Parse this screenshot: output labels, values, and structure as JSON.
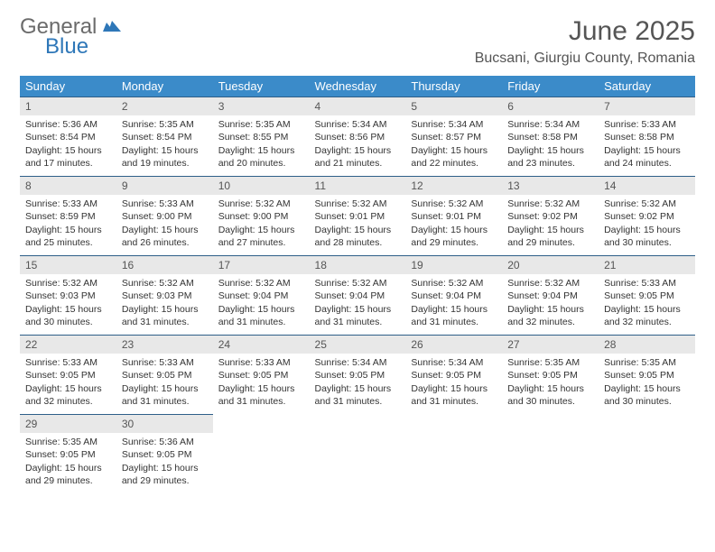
{
  "brand": {
    "word1": "General",
    "word2": "Blue",
    "icon_color": "#2e77b8"
  },
  "title": "June 2025",
  "location": "Bucsani, Giurgiu County, Romania",
  "colors": {
    "header_bg": "#3b8bc9",
    "header_text": "#ffffff",
    "daynum_bg": "#e8e8e8",
    "border": "#2e5f89",
    "text": "#333333"
  },
  "day_headers": [
    "Sunday",
    "Monday",
    "Tuesday",
    "Wednesday",
    "Thursday",
    "Friday",
    "Saturday"
  ],
  "days": [
    {
      "n": "1",
      "sr": "5:36 AM",
      "ss": "8:54 PM",
      "dl": "15 hours and 17 minutes."
    },
    {
      "n": "2",
      "sr": "5:35 AM",
      "ss": "8:54 PM",
      "dl": "15 hours and 19 minutes."
    },
    {
      "n": "3",
      "sr": "5:35 AM",
      "ss": "8:55 PM",
      "dl": "15 hours and 20 minutes."
    },
    {
      "n": "4",
      "sr": "5:34 AM",
      "ss": "8:56 PM",
      "dl": "15 hours and 21 minutes."
    },
    {
      "n": "5",
      "sr": "5:34 AM",
      "ss": "8:57 PM",
      "dl": "15 hours and 22 minutes."
    },
    {
      "n": "6",
      "sr": "5:34 AM",
      "ss": "8:58 PM",
      "dl": "15 hours and 23 minutes."
    },
    {
      "n": "7",
      "sr": "5:33 AM",
      "ss": "8:58 PM",
      "dl": "15 hours and 24 minutes."
    },
    {
      "n": "8",
      "sr": "5:33 AM",
      "ss": "8:59 PM",
      "dl": "15 hours and 25 minutes."
    },
    {
      "n": "9",
      "sr": "5:33 AM",
      "ss": "9:00 PM",
      "dl": "15 hours and 26 minutes."
    },
    {
      "n": "10",
      "sr": "5:32 AM",
      "ss": "9:00 PM",
      "dl": "15 hours and 27 minutes."
    },
    {
      "n": "11",
      "sr": "5:32 AM",
      "ss": "9:01 PM",
      "dl": "15 hours and 28 minutes."
    },
    {
      "n": "12",
      "sr": "5:32 AM",
      "ss": "9:01 PM",
      "dl": "15 hours and 29 minutes."
    },
    {
      "n": "13",
      "sr": "5:32 AM",
      "ss": "9:02 PM",
      "dl": "15 hours and 29 minutes."
    },
    {
      "n": "14",
      "sr": "5:32 AM",
      "ss": "9:02 PM",
      "dl": "15 hours and 30 minutes."
    },
    {
      "n": "15",
      "sr": "5:32 AM",
      "ss": "9:03 PM",
      "dl": "15 hours and 30 minutes."
    },
    {
      "n": "16",
      "sr": "5:32 AM",
      "ss": "9:03 PM",
      "dl": "15 hours and 31 minutes."
    },
    {
      "n": "17",
      "sr": "5:32 AM",
      "ss": "9:04 PM",
      "dl": "15 hours and 31 minutes."
    },
    {
      "n": "18",
      "sr": "5:32 AM",
      "ss": "9:04 PM",
      "dl": "15 hours and 31 minutes."
    },
    {
      "n": "19",
      "sr": "5:32 AM",
      "ss": "9:04 PM",
      "dl": "15 hours and 31 minutes."
    },
    {
      "n": "20",
      "sr": "5:32 AM",
      "ss": "9:04 PM",
      "dl": "15 hours and 32 minutes."
    },
    {
      "n": "21",
      "sr": "5:33 AM",
      "ss": "9:05 PM",
      "dl": "15 hours and 32 minutes."
    },
    {
      "n": "22",
      "sr": "5:33 AM",
      "ss": "9:05 PM",
      "dl": "15 hours and 32 minutes."
    },
    {
      "n": "23",
      "sr": "5:33 AM",
      "ss": "9:05 PM",
      "dl": "15 hours and 31 minutes."
    },
    {
      "n": "24",
      "sr": "5:33 AM",
      "ss": "9:05 PM",
      "dl": "15 hours and 31 minutes."
    },
    {
      "n": "25",
      "sr": "5:34 AM",
      "ss": "9:05 PM",
      "dl": "15 hours and 31 minutes."
    },
    {
      "n": "26",
      "sr": "5:34 AM",
      "ss": "9:05 PM",
      "dl": "15 hours and 31 minutes."
    },
    {
      "n": "27",
      "sr": "5:35 AM",
      "ss": "9:05 PM",
      "dl": "15 hours and 30 minutes."
    },
    {
      "n": "28",
      "sr": "5:35 AM",
      "ss": "9:05 PM",
      "dl": "15 hours and 30 minutes."
    },
    {
      "n": "29",
      "sr": "5:35 AM",
      "ss": "9:05 PM",
      "dl": "15 hours and 29 minutes."
    },
    {
      "n": "30",
      "sr": "5:36 AM",
      "ss": "9:05 PM",
      "dl": "15 hours and 29 minutes."
    }
  ],
  "labels": {
    "sunrise": "Sunrise: ",
    "sunset": "Sunset: ",
    "daylight": "Daylight: "
  }
}
